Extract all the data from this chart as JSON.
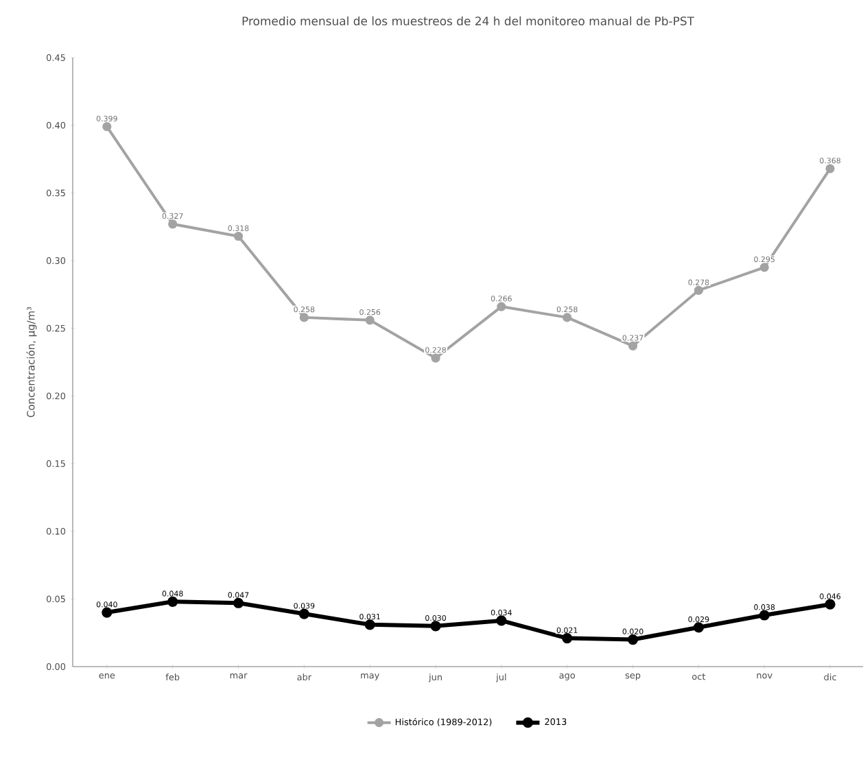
{
  "chart_data": {
    "type": "line",
    "title": "Promedio mensual de los muestreos de 24 h del monitoreo manual de Pb-PST",
    "ylabel": "Concentración, µg/m³",
    "categories": [
      "ene",
      "feb",
      "mar",
      "abr",
      "may",
      "jun",
      "jul",
      "ago",
      "sep",
      "oct",
      "nov",
      "dic"
    ],
    "ylim": [
      0,
      0.45
    ],
    "yticks": [
      {
        "value": 0,
        "label": "0.00"
      },
      {
        "value": 0.05,
        "label": "0.05"
      },
      {
        "value": 0.1,
        "label": "0.10"
      },
      {
        "value": 0.15,
        "label": "0.15"
      },
      {
        "value": 0.2,
        "label": "0.20"
      },
      {
        "value": 0.25,
        "label": "0.25"
      },
      {
        "value": 0.3,
        "label": "0.30"
      },
      {
        "value": 0.35,
        "label": "0.35"
      },
      {
        "value": 0.4,
        "label": "0.40"
      },
      {
        "value": 0.45,
        "label": "0.45"
      }
    ],
    "grid": false,
    "legend": "bottom",
    "marker": "circle",
    "line_style": "solid",
    "series": [
      {
        "name": "Histórico (1989-2012)",
        "color": "#a3a3a3",
        "values": [
          0.399,
          0.327,
          0.318,
          0.258,
          0.256,
          0.228,
          0.266,
          0.258,
          0.237,
          0.278,
          0.295,
          0.368
        ],
        "value_labels": [
          "0.399",
          "0.327",
          "0.318",
          "0.258",
          "0.256",
          "0.228",
          "0.266",
          "0.258",
          "0.237",
          "0.278",
          "0.295",
          "0.368"
        ]
      },
      {
        "name": "2013",
        "color": "#000000",
        "values": [
          0.04,
          0.048,
          0.047,
          0.039,
          0.031,
          0.03,
          0.034,
          0.021,
          0.02,
          0.029,
          0.038,
          0.046
        ],
        "value_labels": [
          "0.040",
          "0.048",
          "0.047",
          "0.039",
          "0.031",
          "0.030",
          "0.034",
          "0.021",
          "0.020",
          "0.029",
          "0.038",
          "0.046"
        ]
      }
    ]
  }
}
